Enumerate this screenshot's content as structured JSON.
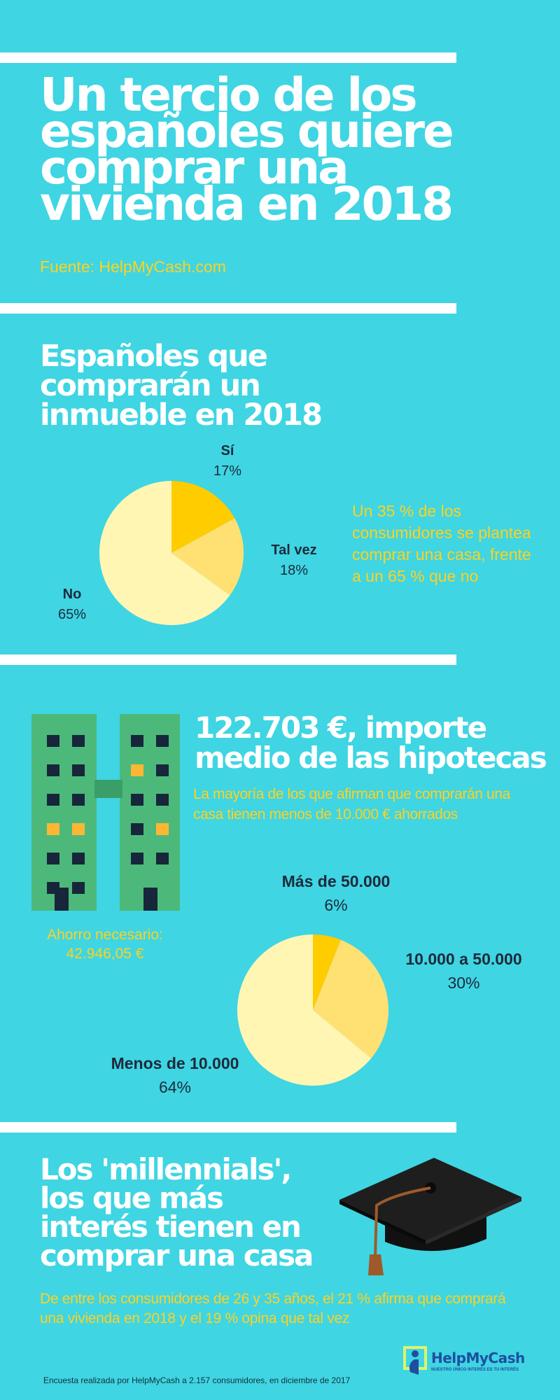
{
  "header": {
    "title_lines": [
      "Un tercio de los",
      "españoles quiere",
      "comprar una",
      "vivienda en 2018"
    ],
    "source": "Fuente: HelpMyCash.com"
  },
  "section1": {
    "title_lines": [
      "Españoles que",
      "comprarán un",
      "inmueble en 2018"
    ],
    "summary": "Un 35 % de los consumidores se plantea comprar una casa, frente a un 65 % que no"
  },
  "section2": {
    "title_lines": [
      "122.703 €, importe",
      "medio de las hipotecas"
    ],
    "subtitle": "La mayoría de los que afirman que comprarán una casa tienen menos de 10.000 € ahorrados",
    "savings_label": "Ahorro necesario:",
    "savings_value": "42.946,05 €"
  },
  "section3": {
    "title_lines": [
      "Los 'millennials',",
      "los que más",
      "interés tienen en",
      "comprar una casa"
    ],
    "body": "De entre los consumidores de 26 y 35 años, el 21 % afirma que comprará una vivienda en 2018 y el 19 % opina que tal vez"
  },
  "footer": {
    "note": "Encuesta realizada por HelpMyCash a 2.157 consumidores, en diciembre de 2017",
    "logo_text": "HelpMyCash",
    "logo_tagline": "NUESTRO ÚNICO INTERÉS ES TU INTERÉS"
  },
  "colors": {
    "background": "#3fd5e3",
    "accent_yellow": "#ffd21f",
    "building_green": "#4cb97a",
    "window_navy": "#17263a"
  },
  "chart_data": [
    {
      "type": "pie",
      "categories": [
        "Sí",
        "Tal vez",
        "No"
      ],
      "values": [
        17,
        18,
        65
      ],
      "labels": [
        "17%",
        "18%",
        "65%"
      ],
      "colors": [
        "#ffcc00",
        "#ffe173",
        "#fff6b3"
      ]
    },
    {
      "type": "pie",
      "categories": [
        "Más de 50.000",
        "10.000 a 50.000",
        "Menos de 10.000"
      ],
      "values": [
        6,
        30,
        64
      ],
      "labels": [
        "6%",
        "30%",
        "64%"
      ],
      "colors": [
        "#ffcc00",
        "#ffe173",
        "#fff6b3"
      ]
    }
  ]
}
